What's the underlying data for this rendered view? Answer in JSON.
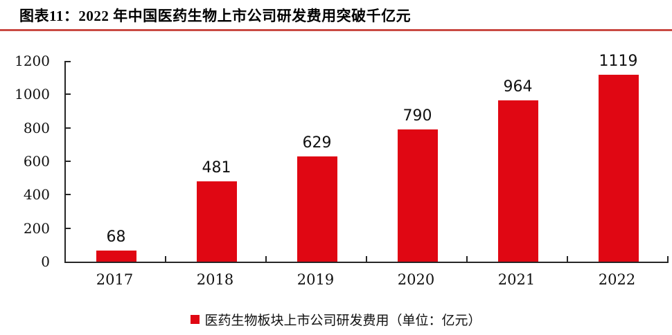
{
  "title": {
    "text": "图表11：2022 年中国医药生物上市公司研发费用突破千亿元"
  },
  "chart_data": {
    "type": "bar",
    "title": "2022 年中国医药生物上市公司研发费用突破千亿元",
    "categories": [
      "2017",
      "2018",
      "2019",
      "2020",
      "2021",
      "2022"
    ],
    "values": [
      68,
      481,
      629,
      790,
      964,
      1119
    ],
    "data_labels": [
      "68",
      "481",
      "629",
      "790",
      "964",
      "1119"
    ],
    "series_name": "医药生物板块上市公司研发费用（单位：亿元）",
    "unit": "亿元",
    "xlabel": "",
    "ylabel": "",
    "ylim": [
      0,
      1200
    ],
    "yticks": [
      0,
      200,
      400,
      600,
      800,
      1000,
      1200
    ],
    "grid": false,
    "legend_position": "bottom",
    "colors": {
      "bar": "#E00713",
      "axis": "#262626",
      "text": "#111111",
      "title_rule": "#C94A43"
    }
  }
}
